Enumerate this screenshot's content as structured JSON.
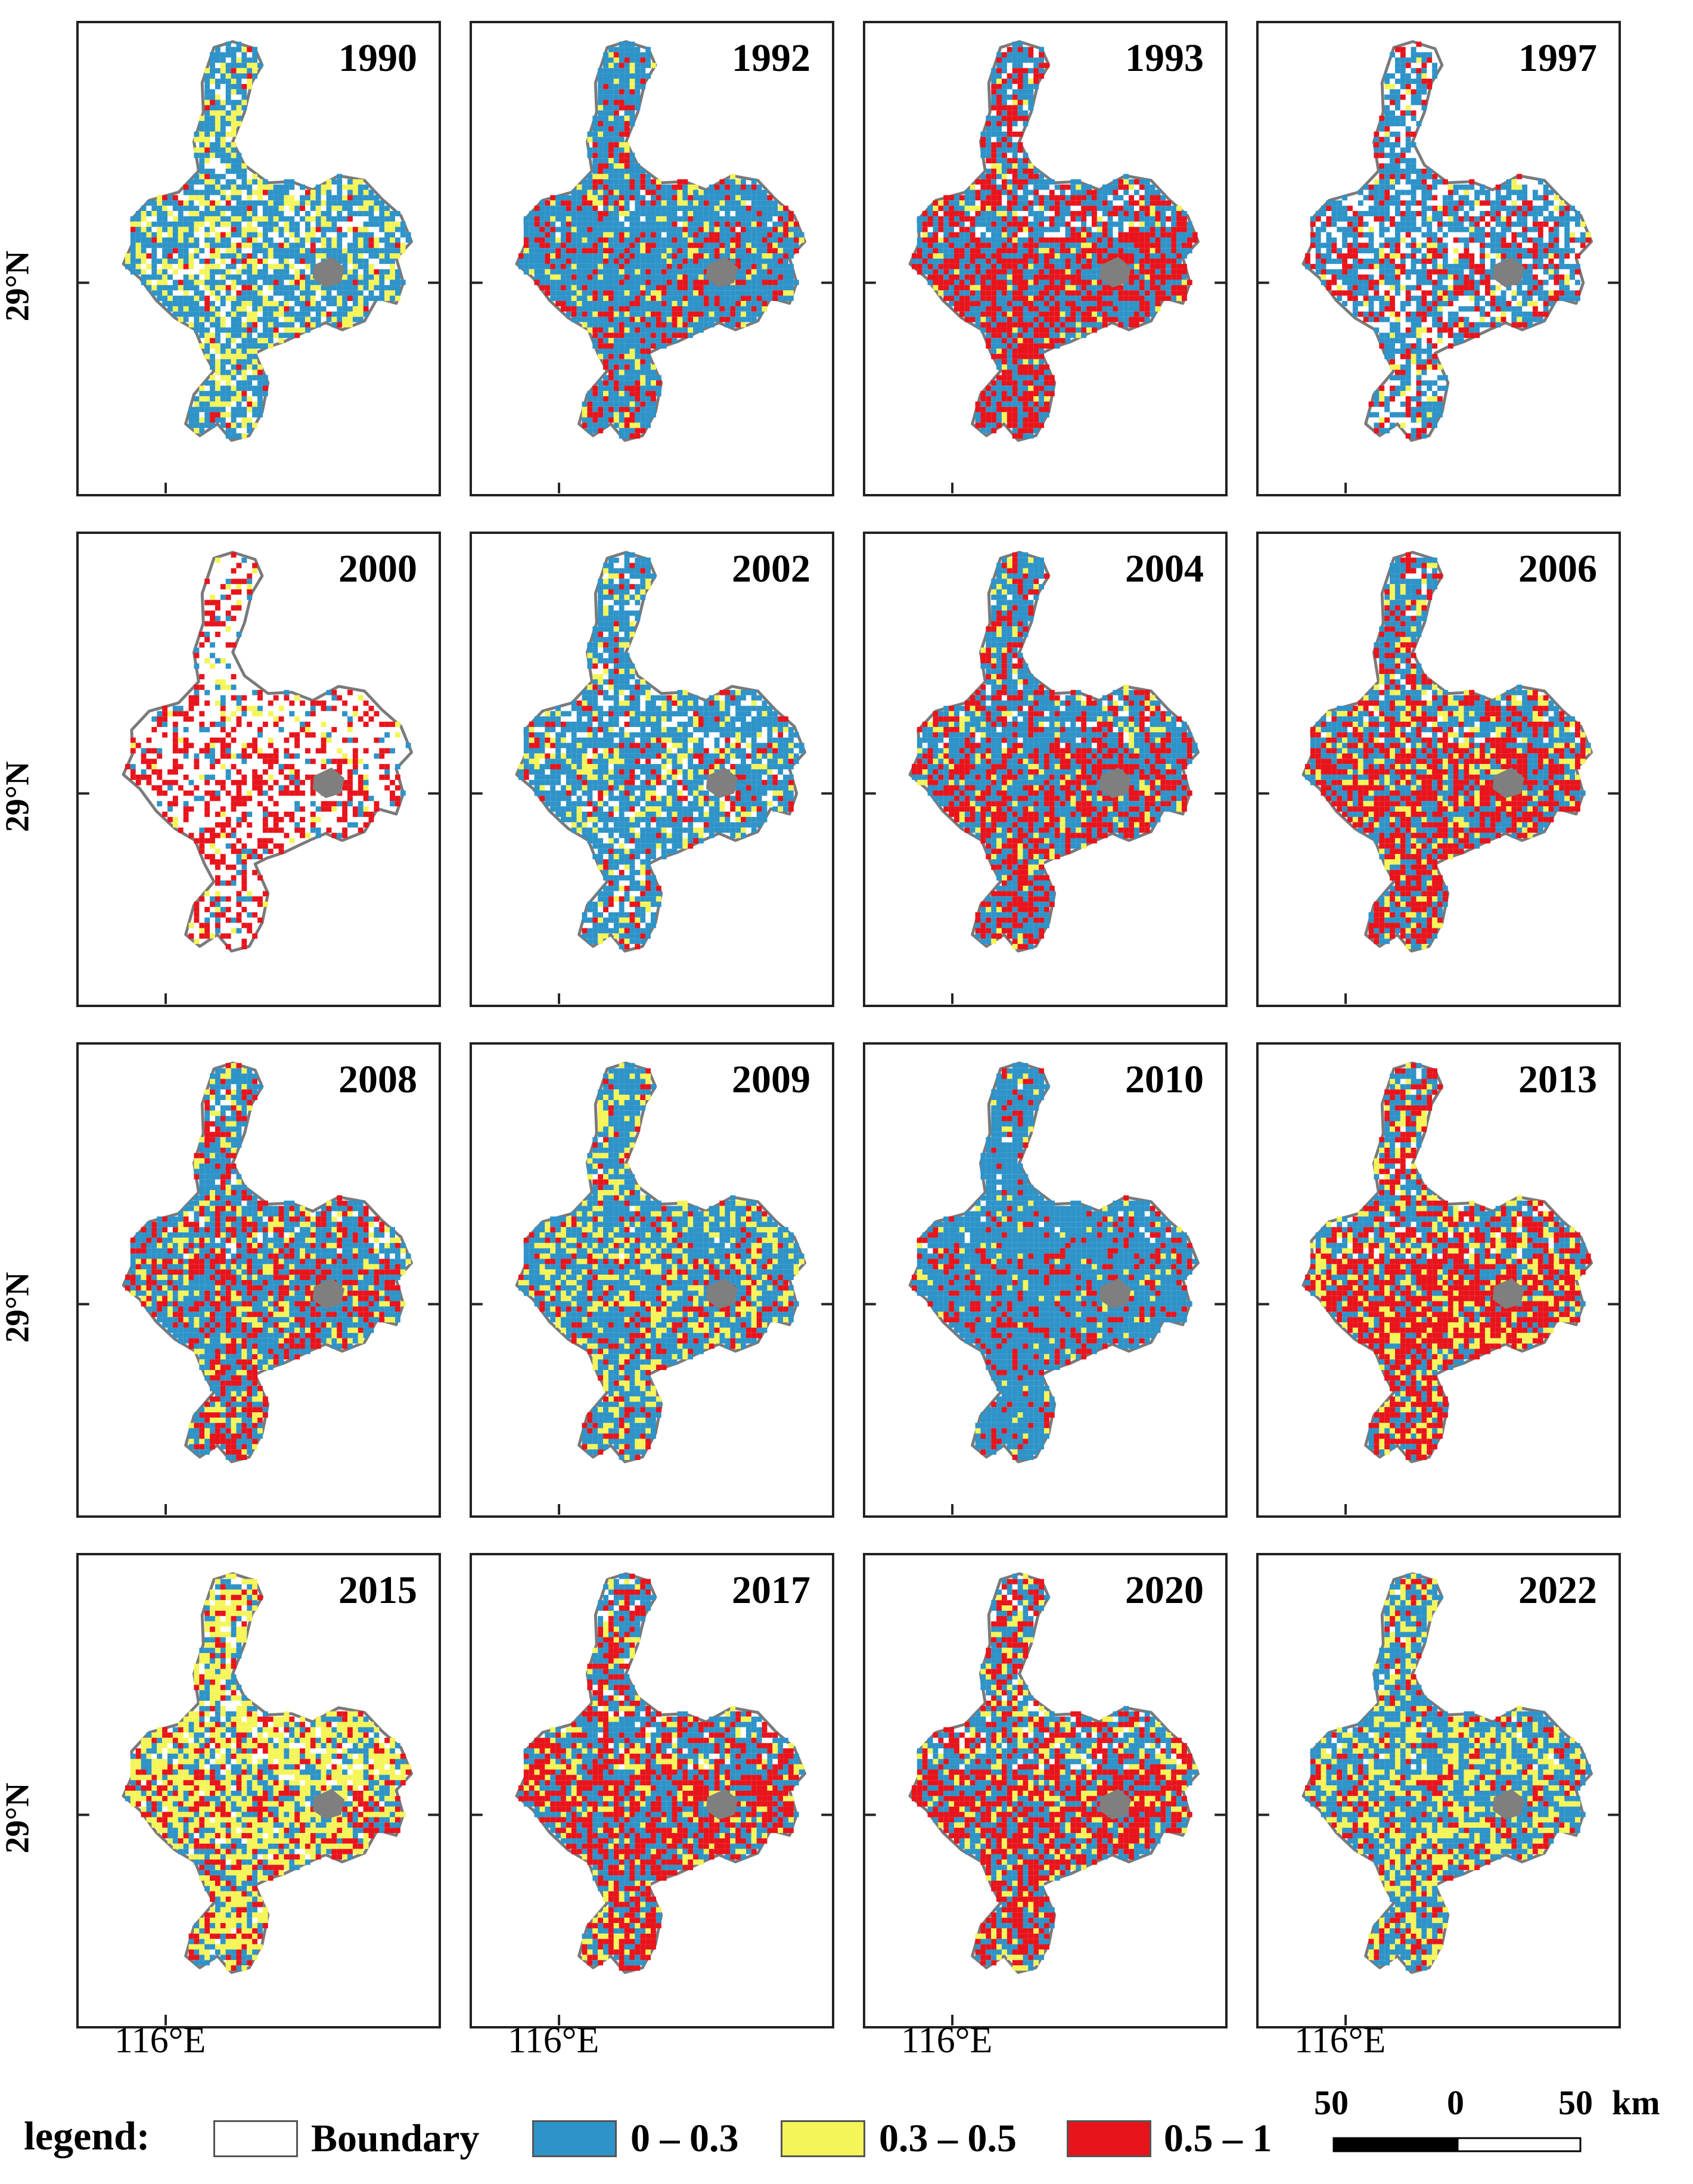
{
  "panels": [
    {
      "year": "1990",
      "mix": [
        0.55,
        0.25,
        0.05
      ]
    },
    {
      "year": "1992",
      "mix": [
        0.7,
        0.1,
        0.2
      ]
    },
    {
      "year": "1993",
      "mix": [
        0.45,
        0.05,
        0.45
      ]
    },
    {
      "year": "1997",
      "mix": [
        0.45,
        0.05,
        0.2
      ]
    },
    {
      "year": "2000",
      "mix": [
        0.08,
        0.05,
        0.25
      ]
    },
    {
      "year": "2002",
      "mix": [
        0.6,
        0.15,
        0.1
      ]
    },
    {
      "year": "2004",
      "mix": [
        0.55,
        0.1,
        0.35
      ]
    },
    {
      "year": "2006",
      "mix": [
        0.45,
        0.15,
        0.4
      ]
    },
    {
      "year": "2008",
      "mix": [
        0.55,
        0.15,
        0.3
      ]
    },
    {
      "year": "2009",
      "mix": [
        0.6,
        0.25,
        0.15
      ]
    },
    {
      "year": "2010",
      "mix": [
        0.8,
        0.05,
        0.15
      ]
    },
    {
      "year": "2013",
      "mix": [
        0.35,
        0.2,
        0.45
      ]
    },
    {
      "year": "2015",
      "mix": [
        0.25,
        0.45,
        0.2
      ]
    },
    {
      "year": "2017",
      "mix": [
        0.45,
        0.15,
        0.4
      ]
    },
    {
      "year": "2020",
      "mix": [
        0.45,
        0.15,
        0.4
      ]
    },
    {
      "year": "2022",
      "mix": [
        0.55,
        0.3,
        0.15
      ]
    }
  ],
  "axes": {
    "latitude_label": "29°N",
    "longitude_label": "116°E"
  },
  "legend": {
    "title": "legend:",
    "items": [
      {
        "label": "Boundary",
        "color": "#ffffff"
      },
      {
        "label": "0 – 0.3",
        "color": "#2e93c8"
      },
      {
        "label": "0.3 – 0.5",
        "color": "#f5f55a"
      },
      {
        "label": "0.5 – 1",
        "color": "#e8141c"
      }
    ]
  },
  "scale_bar": {
    "labels": [
      "50",
      "0",
      "50"
    ],
    "unit": "km"
  },
  "colors": {
    "boundary_outline": "#7a7a7a",
    "island": "#7f7f7f"
  }
}
